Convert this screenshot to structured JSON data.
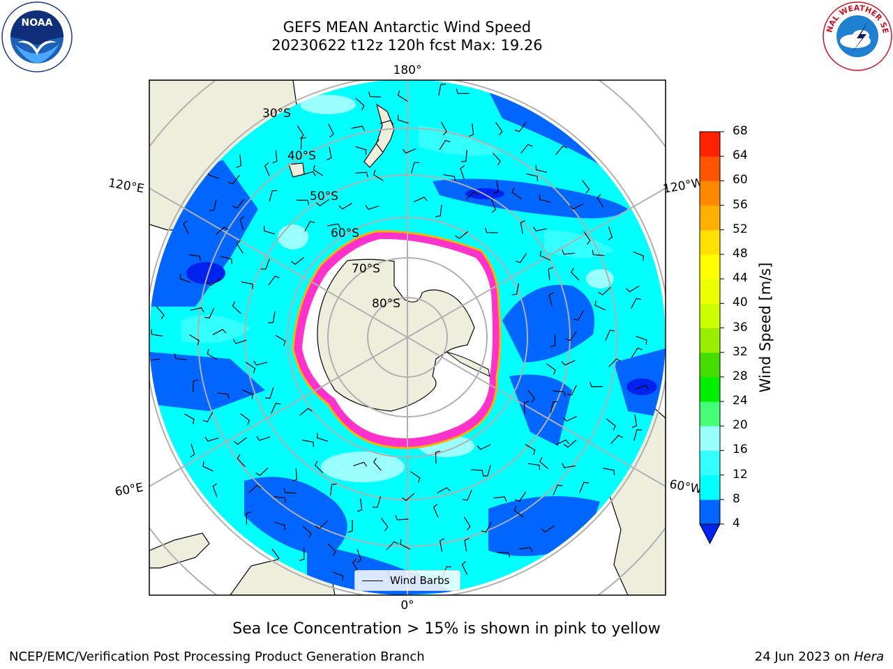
{
  "header": {
    "title_line1": "GEFS MEAN Antarctic Wind Speed",
    "title_line2": "20230622 t12z 120h fcst   Max: 19.26"
  },
  "logos": {
    "noaa": {
      "text": "NOAA",
      "icon": "noaa-logo"
    },
    "nws": {
      "text": "NATIONAL WEATHER SERVICE",
      "icon": "nws-logo"
    }
  },
  "map": {
    "projection": "south-polar-stereographic",
    "meridian_labels": {
      "top": "180°",
      "bottom": "0°",
      "upper_left": "120°E",
      "lower_left": "60°E",
      "upper_right": "120°W",
      "lower_right": "60°W"
    },
    "latitude_labels": [
      "30°S",
      "40°S",
      "50°S",
      "60°S",
      "70°S",
      "80°S"
    ],
    "colors": {
      "land": "#eeeedc",
      "sea_ice_white": "#ffffff",
      "ocean_base": "#00ffff",
      "sea_ice_edge": [
        "#ff33cc",
        "#ffb000"
      ]
    }
  },
  "colorbar": {
    "title": "Wind Speed [m/s]",
    "ticks": [
      "4",
      "8",
      "12",
      "16",
      "20",
      "24",
      "28",
      "32",
      "36",
      "40",
      "44",
      "48",
      "52",
      "56",
      "60",
      "64",
      "68"
    ],
    "colors": [
      "#0066ff",
      "#00ffff",
      "#33ffff",
      "#99ffff",
      "#44ff77",
      "#00ee00",
      "#44dd00",
      "#99ee00",
      "#ccff00",
      "#eeff00",
      "#ffff00",
      "#ffe000",
      "#ffb000",
      "#ff8800",
      "#ff5500",
      "#ff2200"
    ],
    "underflow_color": "#0022ee"
  },
  "legend": {
    "label": "Wind Barbs"
  },
  "footer": {
    "note": "Sea Ice Concentration > 15% is shown in pink to yellow",
    "credit": "NCEP/EMC/Verification Post Processing Product Generation Branch",
    "date": "24 Jun 2023 on ",
    "machine": "Hera"
  }
}
